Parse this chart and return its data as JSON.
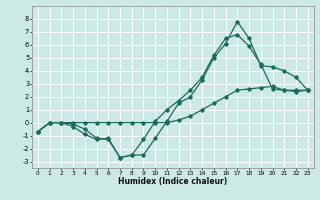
{
  "xlabel": "Humidex (Indice chaleur)",
  "ylabel": "",
  "xlim": [
    -0.5,
    23.5
  ],
  "ylim": [
    -3.5,
    9.0
  ],
  "xticks": [
    0,
    1,
    2,
    3,
    4,
    5,
    6,
    7,
    8,
    9,
    10,
    11,
    12,
    13,
    14,
    15,
    16,
    17,
    18,
    19,
    20,
    21,
    22,
    23
  ],
  "yticks": [
    -3,
    -2,
    -1,
    0,
    1,
    2,
    3,
    4,
    5,
    6,
    7,
    8
  ],
  "bg_color": "#cce9e5",
  "grid_color": "#ffffff",
  "line_color": "#1a6b5a",
  "line1_x": [
    0,
    1,
    2,
    3,
    4,
    5,
    6,
    7,
    8,
    9,
    10,
    11,
    12,
    13,
    14,
    15,
    16,
    17,
    18,
    19,
    20,
    21,
    22,
    23
  ],
  "line1_y": [
    -0.7,
    0.0,
    0.0,
    -0.1,
    -0.5,
    -1.2,
    -1.3,
    -2.7,
    -2.5,
    -2.5,
    -1.2,
    0.1,
    1.5,
    2.0,
    3.3,
    5.0,
    6.1,
    7.8,
    6.5,
    4.4,
    4.3,
    4.0,
    3.5,
    2.5
  ],
  "line2_x": [
    0,
    1,
    2,
    3,
    4,
    5,
    6,
    7,
    8,
    9,
    10,
    11,
    12,
    13,
    14,
    15,
    16,
    17,
    18,
    19,
    20,
    21,
    22,
    23
  ],
  "line2_y": [
    -0.7,
    0.0,
    0.0,
    -0.3,
    -0.9,
    -1.3,
    -1.2,
    -2.7,
    -2.5,
    -1.3,
    0.1,
    1.0,
    1.7,
    2.5,
    3.5,
    5.2,
    6.5,
    6.8,
    5.9,
    4.5,
    2.6,
    2.5,
    2.4,
    2.5
  ],
  "line3_x": [
    0,
    1,
    2,
    3,
    4,
    5,
    6,
    7,
    8,
    9,
    10,
    11,
    12,
    13,
    14,
    15,
    16,
    17,
    18,
    19,
    20,
    21,
    22,
    23
  ],
  "line3_y": [
    -0.7,
    0.0,
    0.0,
    0.0,
    0.0,
    0.0,
    0.0,
    0.0,
    0.0,
    0.0,
    0.0,
    0.0,
    0.2,
    0.5,
    1.0,
    1.5,
    2.0,
    2.5,
    2.6,
    2.7,
    2.8,
    2.5,
    2.5,
    2.5
  ]
}
